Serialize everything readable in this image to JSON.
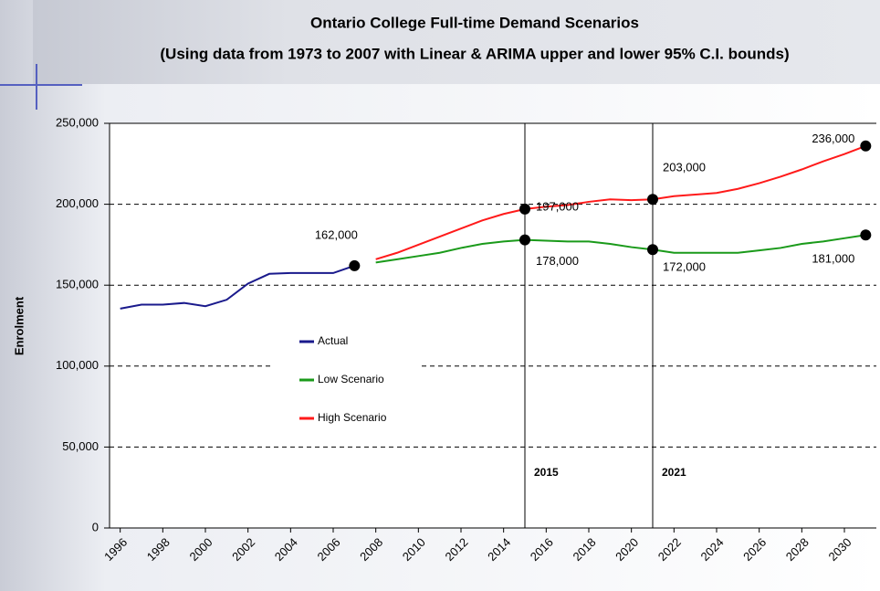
{
  "chart_data": {
    "type": "line",
    "title": "Ontario College Full-time Demand Scenarios",
    "subtitle": "(Using data from 1973 to 2007 with Linear & ARIMA upper and lower 95% C.I. bounds)",
    "y_label": "Enrolment",
    "x": [
      1996,
      1997,
      1998,
      1999,
      2000,
      2001,
      2002,
      2003,
      2004,
      2005,
      2006,
      2007,
      2008,
      2009,
      2010,
      2011,
      2012,
      2013,
      2014,
      2015,
      2016,
      2017,
      2018,
      2019,
      2020,
      2021,
      2022,
      2023,
      2024,
      2025,
      2026,
      2027,
      2028,
      2029,
      2030,
      2031
    ],
    "series": [
      {
        "name": "Actual",
        "color": "#1a1a8c",
        "values": [
          135500,
          138000,
          138000,
          139000,
          137000,
          141000,
          151000,
          157000,
          157500,
          157500,
          157500,
          162000,
          null,
          null,
          null,
          null,
          null,
          null,
          null,
          null,
          null,
          null,
          null,
          null,
          null,
          null,
          null,
          null,
          null,
          null,
          null,
          null,
          null,
          null,
          null,
          null
        ]
      },
      {
        "name": "Low Scenario",
        "color": "#1a9a1a",
        "values": [
          null,
          null,
          null,
          null,
          null,
          null,
          null,
          null,
          null,
          null,
          null,
          null,
          164000,
          166000,
          168000,
          170000,
          173000,
          175500,
          177000,
          178000,
          177500,
          177000,
          177000,
          175500,
          173500,
          172000,
          170000,
          170000,
          170000,
          170000,
          171500,
          173000,
          175500,
          177000,
          179000,
          181000
        ]
      },
      {
        "name": "High Scenario",
        "color": "#ff1a1a",
        "values": [
          null,
          null,
          null,
          null,
          null,
          null,
          null,
          null,
          null,
          null,
          null,
          null,
          166000,
          170000,
          175000,
          180000,
          185000,
          190000,
          194000,
          197000,
          198500,
          199500,
          201500,
          203000,
          202500,
          203000,
          205000,
          206000,
          207000,
          209500,
          213000,
          217000,
          221500,
          226500,
          231000,
          236000
        ]
      }
    ],
    "xlim": [
      1995.5,
      2031.5
    ],
    "xticks": [
      1996,
      1998,
      2000,
      2002,
      2004,
      2006,
      2008,
      2010,
      2012,
      2014,
      2016,
      2018,
      2020,
      2022,
      2024,
      2026,
      2028,
      2030
    ],
    "ylim": [
      0,
      250000
    ],
    "yticks": [
      0,
      {
        "value": 50000,
        "label": "50,000"
      },
      {
        "value": 100000,
        "label": "100,000"
      },
      {
        "value": 150000,
        "label": "150,000"
      },
      {
        "value": 200000,
        "label": "200,000"
      },
      {
        "value": 250000,
        "label": "250,000"
      }
    ],
    "grid": true,
    "legend": "center-left",
    "vlines": [
      {
        "value": 2015,
        "label": "2015"
      },
      {
        "value": 2021,
        "label": "2021"
      }
    ],
    "annotations": [
      {
        "text": "162,000",
        "x": 2007,
        "y": 162000
      },
      {
        "text": "197,000",
        "x": 2015,
        "y": 197000
      },
      {
        "text": "178,000",
        "x": 2015,
        "y": 178000
      },
      {
        "text": "203,000",
        "x": 2021,
        "y": 203000
      },
      {
        "text": "172,000",
        "x": 2021,
        "y": 172000
      },
      {
        "text": "236,000",
        "x": 2031,
        "y": 236000
      },
      {
        "text": "181,000",
        "x": 2031,
        "y": 181000
      }
    ]
  }
}
